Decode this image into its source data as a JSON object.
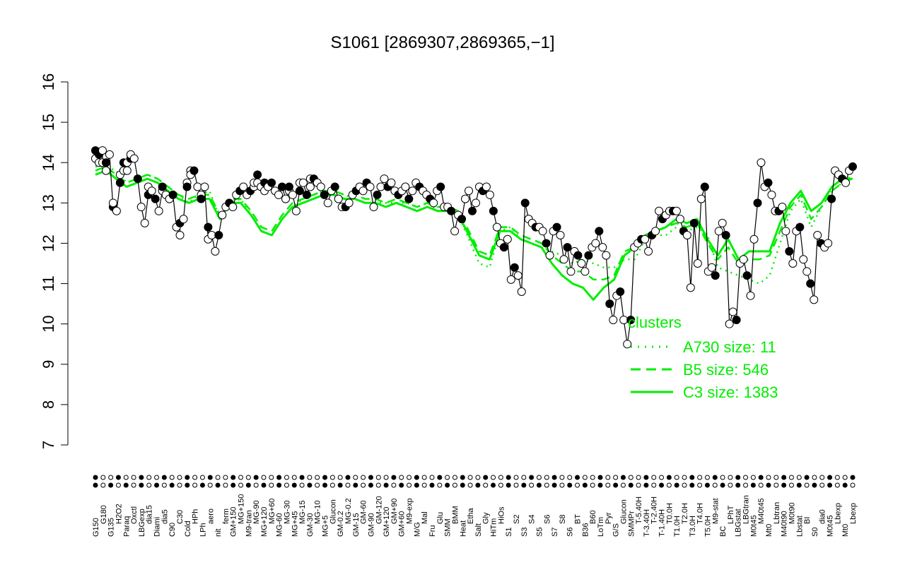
{
  "chart_data": {
    "type": "line",
    "title": "S1061 [2869307,2869365,−1]",
    "ylim": [
      7,
      16
    ],
    "yticks": [
      "7",
      "8",
      "9",
      "10",
      "11",
      "12",
      "13",
      "14",
      "15",
      "16"
    ],
    "x_tick_labels": [
      "G150",
      "G180",
      "G135",
      "H2O2",
      "Paraq",
      "Oxctl",
      "LBGexp",
      "dia15",
      "Diami",
      "dia5",
      "C90",
      "C30",
      "Cold",
      "HPh",
      "LPh",
      "aero",
      "nit",
      "ferm",
      "GM+150",
      "MG+150",
      "M9-tran",
      "MG-90",
      "MG+120",
      "MG+60",
      "MG-60",
      "MG-30",
      "MG+45",
      "MG-15",
      "GM-30",
      "MG-10",
      "MG+5",
      "Glucon",
      "GM-0.2",
      "MG-0.2",
      "GM-15",
      "GM-60",
      "GM-90",
      "GM-120",
      "GM+120",
      "GM+90",
      "GM+60",
      "M9-exp",
      "M/G",
      "Mal",
      "Fru",
      "Glu",
      "SMM",
      "BMM",
      "Heat",
      "Etha",
      "Salt",
      "Gly",
      "HiTm",
      "HiOs",
      "S1",
      "S2",
      "S3",
      "S4",
      "S5",
      "S6",
      "S7",
      "S8",
      "S6",
      "BT",
      "B36",
      "B60",
      "LoTm",
      "Pyr",
      "G/S",
      "Glucon",
      "SMMPr",
      "T-5.40H",
      "T-3.40H",
      "T-2.40H",
      "T-1.40H",
      "T0.0H",
      "T1.0H",
      "T2.0H",
      "T3.0H",
      "T4.0H",
      "T5.0H",
      "M9-stat",
      "BC",
      "LPhT",
      "LBGstat",
      "LBGtran",
      "M0t45",
      "M40t45",
      "Mt0",
      "Lbtran",
      "M40t90",
      "M0t90",
      "Lbstat",
      "BI",
      "S0",
      "dia0",
      "M0t45",
      "Lbexp",
      "Mt0",
      "Lbexp"
    ],
    "points": [
      [
        0,
        14.3
      ],
      [
        0,
        14.1
      ],
      [
        1,
        14.0
      ],
      [
        1,
        14.2
      ],
      [
        2,
        14.3
      ],
      [
        2,
        14.0
      ],
      [
        3,
        14.0
      ],
      [
        3,
        13.8
      ],
      [
        4,
        14.2
      ],
      [
        5,
        12.9
      ],
      [
        5,
        13.0
      ],
      [
        6,
        12.8
      ],
      [
        7,
        13.5
      ],
      [
        7,
        13.7
      ],
      [
        8,
        13.8
      ],
      [
        8,
        14.0
      ],
      [
        9,
        14.0
      ],
      [
        9,
        13.8
      ],
      [
        10,
        14.1
      ],
      [
        10,
        14.2
      ],
      [
        11,
        14.1
      ],
      [
        12,
        13.6
      ],
      [
        13,
        12.9
      ],
      [
        14,
        12.5
      ],
      [
        15,
        13.2
      ],
      [
        15,
        13.4
      ],
      [
        16,
        13.3
      ],
      [
        17,
        13.1
      ],
      [
        18,
        12.8
      ],
      [
        19,
        13.3
      ],
      [
        19,
        13.4
      ],
      [
        20,
        13.2
      ],
      [
        21,
        13.1
      ],
      [
        22,
        13.2
      ],
      [
        23,
        12.4
      ],
      [
        24,
        12.2
      ],
      [
        24,
        12.5
      ],
      [
        25,
        12.6
      ],
      [
        26,
        13.5
      ],
      [
        26,
        13.4
      ],
      [
        27,
        13.8
      ],
      [
        27,
        13.7
      ],
      [
        28,
        13.8
      ],
      [
        29,
        13.4
      ],
      [
        30,
        13.2
      ],
      [
        30,
        13.1
      ],
      [
        31,
        13.4
      ],
      [
        32,
        12.1
      ],
      [
        32,
        12.4
      ],
      [
        33,
        12.2
      ],
      [
        34,
        11.8
      ],
      [
        35,
        12.2
      ],
      [
        36,
        12.7
      ],
      [
        37,
        12.9
      ],
      [
        38,
        13.0
      ],
      [
        39,
        12.9
      ],
      [
        40,
        13.2
      ],
      [
        41,
        13.3
      ],
      [
        42,
        13.4
      ],
      [
        43,
        13.2
      ],
      [
        44,
        13.3
      ],
      [
        45,
        13.4
      ],
      [
        45,
        13.5
      ],
      [
        46,
        13.7
      ],
      [
        46,
        13.5
      ],
      [
        47,
        13.4
      ],
      [
        48,
        13.5
      ],
      [
        48,
        13.3
      ],
      [
        49,
        13.4
      ],
      [
        50,
        13.5
      ],
      [
        51,
        13.3
      ],
      [
        52,
        13.2
      ],
      [
        53,
        13.4
      ],
      [
        54,
        13.1
      ],
      [
        55,
        13.3
      ],
      [
        55,
        13.4
      ],
      [
        56,
        13.2
      ],
      [
        57,
        12.8
      ],
      [
        58,
        13.3
      ],
      [
        58,
        13.5
      ],
      [
        59,
        13.5
      ],
      [
        60,
        13.2
      ],
      [
        61,
        13.4
      ],
      [
        61,
        13.6
      ],
      [
        62,
        13.6
      ],
      [
        63,
        13.5
      ],
      [
        64,
        13.4
      ],
      [
        65,
        13.2
      ],
      [
        66,
        13.0
      ],
      [
        67,
        13.3
      ],
      [
        68,
        13.4
      ],
      [
        69,
        13.1
      ],
      [
        70,
        12.9
      ],
      [
        71,
        12.9
      ],
      [
        72,
        13.0
      ],
      [
        73,
        13.2
      ],
      [
        74,
        13.3
      ],
      [
        75,
        13.4
      ],
      [
        76,
        13.3
      ],
      [
        77,
        13.5
      ],
      [
        78,
        13.4
      ],
      [
        79,
        12.9
      ],
      [
        80,
        13.2
      ],
      [
        81,
        13.4
      ],
      [
        82,
        13.6
      ],
      [
        83,
        13.4
      ],
      [
        84,
        13.5
      ],
      [
        85,
        13.3
      ],
      [
        86,
        13.2
      ],
      [
        87,
        13.3
      ],
      [
        88,
        13.4
      ],
      [
        89,
        13.1
      ],
      [
        90,
        13.3
      ],
      [
        91,
        13.5
      ],
      [
        92,
        13.4
      ],
      [
        93,
        13.3
      ],
      [
        94,
        13.2
      ],
      [
        95,
        13.1
      ],
      [
        96,
        13.0
      ],
      [
        97,
        13.3
      ],
      [
        98,
        13.4
      ],
      [
        99,
        12.9
      ],
      [
        100,
        12.9
      ],
      [
        101,
        12.8
      ],
      [
        102,
        12.3
      ],
      [
        103,
        12.7
      ],
      [
        104,
        12.6
      ],
      [
        105,
        13.1
      ],
      [
        106,
        13.3
      ],
      [
        107,
        12.8
      ],
      [
        108,
        13.0
      ],
      [
        109,
        13.4
      ],
      [
        110,
        13.3
      ],
      [
        111,
        13.4
      ],
      [
        112,
        13.2
      ],
      [
        113,
        12.8
      ],
      [
        114,
        12.4
      ],
      [
        115,
        12.0
      ],
      [
        116,
        11.9
      ],
      [
        117,
        12.1
      ],
      [
        118,
        11.1
      ],
      [
        119,
        11.4
      ],
      [
        120,
        11.2
      ],
      [
        121,
        10.8
      ],
      [
        122,
        13.0
      ],
      [
        123,
        12.6
      ],
      [
        124,
        12.5
      ],
      [
        125,
        12.4
      ],
      [
        126,
        12.4
      ],
      [
        127,
        12.3
      ],
      [
        128,
        12.0
      ],
      [
        129,
        11.7
      ],
      [
        130,
        12.3
      ],
      [
        131,
        12.4
      ],
      [
        132,
        12.2
      ],
      [
        133,
        11.6
      ],
      [
        134,
        11.9
      ],
      [
        135,
        11.3
      ],
      [
        136,
        11.8
      ],
      [
        137,
        11.7
      ],
      [
        138,
        11.5
      ],
      [
        139,
        11.3
      ],
      [
        140,
        11.7
      ],
      [
        141,
        11.9
      ],
      [
        142,
        12.0
      ],
      [
        143,
        12.3
      ],
      [
        144,
        11.9
      ],
      [
        145,
        11.7
      ],
      [
        146,
        10.5
      ],
      [
        147,
        10.1
      ],
      [
        148,
        10.7
      ],
      [
        149,
        10.8
      ],
      [
        150,
        10.1
      ],
      [
        151,
        9.5
      ],
      [
        152,
        10.1
      ],
      [
        153,
        11.9
      ],
      [
        154,
        12.0
      ],
      [
        155,
        12.1
      ],
      [
        156,
        12.1
      ],
      [
        157,
        11.8
      ],
      [
        158,
        12.2
      ],
      [
        159,
        12.3
      ],
      [
        160,
        12.8
      ],
      [
        161,
        12.6
      ],
      [
        162,
        12.7
      ],
      [
        163,
        12.8
      ],
      [
        164,
        12.8
      ],
      [
        165,
        12.8
      ],
      [
        166,
        12.6
      ],
      [
        167,
        12.3
      ],
      [
        168,
        12.2
      ],
      [
        169,
        10.9
      ],
      [
        170,
        12.5
      ],
      [
        171,
        11.5
      ],
      [
        172,
        13.1
      ],
      [
        173,
        13.4
      ],
      [
        174,
        11.3
      ],
      [
        175,
        11.4
      ],
      [
        176,
        11.2
      ],
      [
        177,
        12.3
      ],
      [
        178,
        12.5
      ],
      [
        179,
        12.2
      ],
      [
        180,
        10.0
      ],
      [
        181,
        10.3
      ],
      [
        182,
        10.1
      ],
      [
        183,
        11.5
      ],
      [
        184,
        11.6
      ],
      [
        185,
        11.2
      ],
      [
        186,
        10.7
      ],
      [
        187,
        12.1
      ],
      [
        188,
        13.0
      ],
      [
        189,
        14.0
      ],
      [
        190,
        13.4
      ],
      [
        191,
        13.5
      ],
      [
        192,
        13.2
      ],
      [
        193,
        12.8
      ],
      [
        194,
        12.8
      ],
      [
        195,
        12.9
      ],
      [
        196,
        12.3
      ],
      [
        197,
        11.8
      ],
      [
        198,
        11.5
      ],
      [
        199,
        12.3
      ],
      [
        200,
        12.4
      ],
      [
        201,
        11.6
      ],
      [
        202,
        11.3
      ],
      [
        203,
        11.0
      ],
      [
        204,
        10.6
      ],
      [
        205,
        12.2
      ],
      [
        206,
        12.0
      ],
      [
        207,
        11.9
      ],
      [
        208,
        12.0
      ],
      [
        209,
        13.1
      ],
      [
        210,
        13.8
      ],
      [
        211,
        13.7
      ],
      [
        212,
        13.6
      ],
      [
        213,
        13.5
      ],
      [
        214,
        13.8
      ],
      [
        215,
        13.9
      ]
    ],
    "series": [
      {
        "name": "A730 size: 11",
        "style": "dotted",
        "values": [
          13.9,
          13.9,
          13.8,
          13.5,
          13.6,
          13.7,
          13.6,
          13.4,
          13.2,
          13.0,
          13.2,
          13.3,
          12.6,
          13.0,
          13.1,
          12.7,
          12.3,
          12.2,
          12.6,
          12.9,
          13.1,
          13.2,
          13.3,
          13.3,
          13.2,
          13.1,
          13.0,
          13.0,
          13.0,
          13.0,
          13.0,
          12.9,
          13.0,
          12.8,
          12.9,
          12.7,
          12.1,
          11.5,
          11.4,
          12.3,
          12.4,
          12.1,
          12.0,
          11.9,
          11.8,
          11.7,
          11.5,
          11.6,
          11.5,
          11.4,
          11.4,
          11.6,
          11.6,
          12.1,
          12.2,
          12.2,
          12.4,
          12.3,
          12.4,
          12.2,
          11.4,
          11.3,
          11.2,
          11.1,
          11.0,
          11.2,
          12.0,
          12.8,
          13.1,
          12.4,
          12.9,
          13.3,
          13.5,
          13.7
        ]
      },
      {
        "name": "B5 size: 546",
        "style": "dashed",
        "values": [
          13.8,
          13.9,
          13.7,
          13.5,
          13.6,
          13.7,
          13.6,
          13.4,
          13.2,
          13.1,
          13.2,
          13.2,
          12.7,
          13.1,
          13.1,
          12.8,
          12.4,
          12.3,
          12.7,
          13.0,
          13.1,
          13.2,
          13.3,
          13.3,
          13.2,
          13.2,
          13.1,
          13.1,
          13.0,
          13.1,
          13.0,
          12.9,
          13.0,
          12.9,
          12.9,
          12.8,
          12.3,
          11.8,
          11.7,
          12.4,
          12.4,
          12.2,
          12.1,
          12.0,
          11.7,
          11.5,
          11.3,
          11.3,
          11.1,
          11.1,
          11.2,
          11.8,
          11.9,
          12.2,
          12.3,
          12.4,
          12.5,
          12.4,
          12.5,
          12.0,
          11.6,
          11.9,
          11.5,
          11.6,
          11.6,
          11.7,
          12.3,
          12.9,
          13.2,
          12.6,
          12.9,
          13.3,
          13.5,
          13.6
        ]
      },
      {
        "name": "C3 size: 1383",
        "style": "solid",
        "values": [
          13.7,
          13.8,
          13.6,
          13.4,
          13.5,
          13.6,
          13.5,
          13.3,
          13.1,
          13.0,
          13.1,
          13.1,
          12.6,
          13.0,
          13.0,
          12.7,
          12.3,
          12.2,
          12.6,
          12.9,
          13.0,
          13.1,
          13.2,
          13.2,
          13.1,
          13.1,
          13.0,
          13.0,
          12.9,
          13.0,
          12.9,
          12.8,
          12.9,
          12.8,
          12.8,
          12.7,
          12.2,
          11.7,
          11.6,
          12.3,
          12.3,
          12.1,
          12.0,
          11.9,
          11.5,
          11.2,
          11.0,
          10.9,
          10.6,
          10.9,
          11.1,
          11.7,
          11.9,
          12.2,
          12.3,
          12.4,
          12.6,
          12.5,
          12.6,
          12.1,
          11.7,
          12.1,
          11.6,
          11.8,
          11.8,
          11.8,
          12.5,
          13.0,
          13.3,
          12.8,
          13.0,
          13.4,
          13.6,
          13.6
        ]
      }
    ],
    "legend": {
      "title": "clusters",
      "position": "right",
      "entries": [
        {
          "label": "A730 size: 11",
          "style": "dotted"
        },
        {
          "label": "B5 size: 546",
          "style": "dashed"
        },
        {
          "label": "C3 size: 1383",
          "style": "solid"
        }
      ]
    },
    "colors": {
      "lines": "#00ee00",
      "points_open": "#ffffff",
      "points_filled": "#000000",
      "axis": "#000000"
    }
  }
}
